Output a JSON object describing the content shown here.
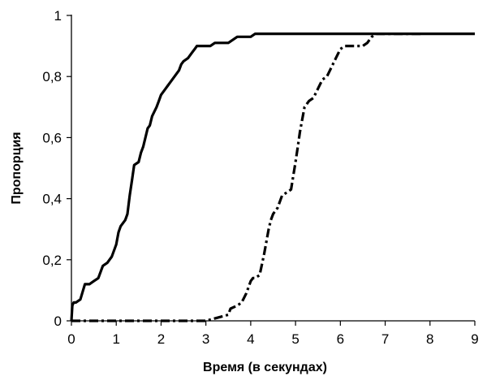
{
  "chart_data": {
    "type": "line",
    "title": "",
    "xlabel": "Время (в секундах)",
    "ylabel": "Пропорция",
    "xlim": [
      0,
      9
    ],
    "ylim": [
      0,
      1
    ],
    "x_ticks": [
      "0",
      "1",
      "2",
      "3",
      "4",
      "5",
      "6",
      "7",
      "8",
      "9"
    ],
    "y_ticks": [
      "0",
      "0,2",
      "0,4",
      "0,6",
      "0,8",
      "1"
    ],
    "grid": false,
    "legend": "none",
    "series": [
      {
        "style": "solid",
        "color": "#000000",
        "x": [
          0,
          0.02,
          0.05,
          0.1,
          0.2,
          0.3,
          0.4,
          0.5,
          0.6,
          0.7,
          0.8,
          0.85,
          0.9,
          1.0,
          1.05,
          1.1,
          1.2,
          1.25,
          1.3,
          1.35,
          1.4,
          1.5,
          1.55,
          1.6,
          1.7,
          1.75,
          1.8,
          1.9,
          1.95,
          2.0,
          2.1,
          2.15,
          2.2,
          2.3,
          2.4,
          2.45,
          2.5,
          2.6,
          2.7,
          2.75,
          2.8,
          2.9,
          3.0,
          3.1,
          3.2,
          3.3,
          3.4,
          3.5,
          3.6,
          3.7,
          3.8,
          3.9,
          4.0,
          4.1,
          4.2,
          4.5,
          5.0,
          6.0,
          7.0,
          8.0,
          9.0
        ],
        "y": [
          0,
          0.05,
          0.06,
          0.06,
          0.07,
          0.12,
          0.12,
          0.13,
          0.14,
          0.18,
          0.19,
          0.2,
          0.21,
          0.25,
          0.29,
          0.31,
          0.33,
          0.35,
          0.41,
          0.46,
          0.51,
          0.52,
          0.55,
          0.57,
          0.63,
          0.64,
          0.67,
          0.7,
          0.72,
          0.74,
          0.76,
          0.77,
          0.78,
          0.8,
          0.82,
          0.84,
          0.85,
          0.86,
          0.88,
          0.89,
          0.9,
          0.9,
          0.9,
          0.9,
          0.91,
          0.91,
          0.91,
          0.91,
          0.92,
          0.93,
          0.93,
          0.93,
          0.93,
          0.94,
          0.94,
          0.94,
          0.94,
          0.94,
          0.94,
          0.94,
          0.94
        ]
      },
      {
        "style": "dash-dot",
        "color": "#000000",
        "x": [
          0,
          1.0,
          2.0,
          3.0,
          3.5,
          3.55,
          3.7,
          3.8,
          3.9,
          4.0,
          4.05,
          4.1,
          4.2,
          4.3,
          4.4,
          4.45,
          4.5,
          4.6,
          4.7,
          4.8,
          4.9,
          5.0,
          5.05,
          5.1,
          5.2,
          5.3,
          5.4,
          5.5,
          5.6,
          5.7,
          5.8,
          5.9,
          6.0,
          6.1,
          6.2,
          6.3,
          6.4,
          6.5,
          6.6,
          6.7,
          6.8,
          6.9,
          7.0,
          7.5,
          7.8
        ],
        "y": [
          0,
          0,
          0,
          0,
          0.02,
          0.04,
          0.05,
          0.06,
          0.09,
          0.13,
          0.14,
          0.14,
          0.15,
          0.22,
          0.3,
          0.33,
          0.35,
          0.37,
          0.41,
          0.42,
          0.43,
          0.52,
          0.57,
          0.62,
          0.7,
          0.72,
          0.73,
          0.76,
          0.79,
          0.8,
          0.83,
          0.86,
          0.89,
          0.9,
          0.9,
          0.9,
          0.9,
          0.9,
          0.91,
          0.93,
          0.94,
          0.94,
          0.94,
          0.94,
          0.94
        ]
      }
    ]
  }
}
